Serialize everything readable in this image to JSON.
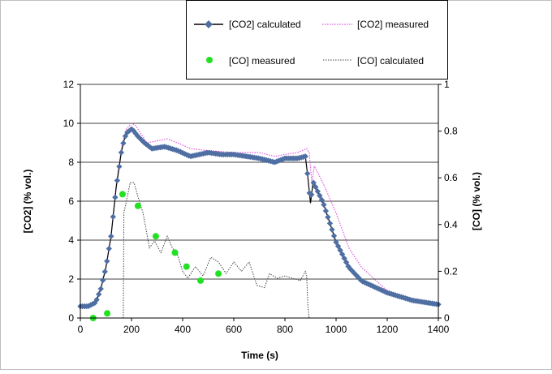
{
  "chart_data": {
    "type": "line",
    "xlabel": "Time (s)",
    "ylabel": "[CO2] (% vol.)",
    "y2label": "[CO] (% vol.)",
    "xlim": [
      0,
      1400
    ],
    "ylim": [
      0,
      12
    ],
    "y2lim": [
      0,
      1
    ],
    "xticks": [
      "0",
      "200",
      "400",
      "600",
      "800",
      "1000",
      "1200",
      "1400"
    ],
    "yticks": [
      "0",
      "2",
      "4",
      "6",
      "8",
      "10",
      "12"
    ],
    "y2ticks": [
      "0",
      "0.2",
      "0.4",
      "0.6",
      "0.8",
      "1"
    ],
    "grid": "horizontal major gridlines",
    "legend_position": "top-center",
    "colors": {
      "co2_calculated": "#4F6FA3",
      "co2_measured": "#E05AE0",
      "co_measured": "#22E022",
      "co_calculated": "#444444"
    },
    "series": [
      {
        "key": "co2_calculated",
        "name": "[CO2] calculated",
        "axis": "left",
        "style": "solid line with diamond markers",
        "x": [
          0,
          30,
          60,
          80,
          100,
          120,
          140,
          160,
          170,
          180,
          200,
          210,
          220,
          250,
          280,
          330,
          380,
          430,
          500,
          550,
          600,
          650,
          700,
          760,
          800,
          850,
          880,
          890,
          900,
          910,
          950,
          1000,
          1050,
          1100,
          1200,
          1300,
          1400
        ],
        "y": [
          0.6,
          0.6,
          0.8,
          1.5,
          2.6,
          4.2,
          6.7,
          8.5,
          9.1,
          9.5,
          9.7,
          9.6,
          9.4,
          9.0,
          8.7,
          8.8,
          8.6,
          8.3,
          8.5,
          8.4,
          8.4,
          8.3,
          8.2,
          8.0,
          8.2,
          8.2,
          8.3,
          7.2,
          5.9,
          7.0,
          5.9,
          3.9,
          2.6,
          1.9,
          1.3,
          0.9,
          0.7
        ]
      },
      {
        "key": "co2_measured",
        "name": "[CO2] measured",
        "axis": "left",
        "style": "dotted line",
        "x": [
          0,
          30,
          60,
          80,
          100,
          120,
          140,
          160,
          180,
          200,
          215,
          230,
          260,
          300,
          340,
          380,
          430,
          500,
          600,
          700,
          760,
          800,
          850,
          885,
          895,
          905,
          915,
          950,
          1000,
          1050,
          1100,
          1200,
          1300,
          1400
        ],
        "y": [
          0.6,
          0.6,
          0.8,
          1.5,
          2.6,
          4.2,
          6.8,
          8.7,
          9.7,
          10.0,
          9.9,
          9.6,
          9.0,
          9.1,
          9.2,
          9.0,
          8.7,
          8.6,
          8.5,
          8.5,
          8.3,
          8.4,
          8.5,
          8.7,
          8.5,
          7.0,
          7.8,
          6.9,
          5.4,
          3.6,
          2.6,
          1.4,
          0.9,
          0.7
        ]
      },
      {
        "key": "co_measured",
        "name": "[CO] measured",
        "axis": "right",
        "style": "markers only",
        "x": [
          50,
          105,
          165,
          225,
          295,
          370,
          415,
          470,
          540
        ],
        "y": [
          0.0,
          0.02,
          0.53,
          0.48,
          0.35,
          0.28,
          0.22,
          0.16,
          0.19
        ]
      },
      {
        "key": "co_calculated",
        "name": "[CO] calculated",
        "axis": "right",
        "style": "dotted line",
        "x": [
          168,
          170,
          180,
          195,
          210,
          225,
          245,
          270,
          290,
          315,
          340,
          360,
          380,
          400,
          420,
          450,
          480,
          510,
          540,
          570,
          600,
          630,
          660,
          690,
          720,
          740,
          770,
          800,
          830,
          860,
          880,
          885,
          890,
          895
        ],
        "y": [
          0,
          0.45,
          0.5,
          0.58,
          0.58,
          0.52,
          0.45,
          0.3,
          0.33,
          0.28,
          0.35,
          0.3,
          0.27,
          0.2,
          0.17,
          0.22,
          0.18,
          0.26,
          0.24,
          0.19,
          0.24,
          0.2,
          0.24,
          0.14,
          0.13,
          0.19,
          0.17,
          0.18,
          0.17,
          0.16,
          0.2,
          0.18,
          0.05,
          0
        ]
      }
    ]
  }
}
